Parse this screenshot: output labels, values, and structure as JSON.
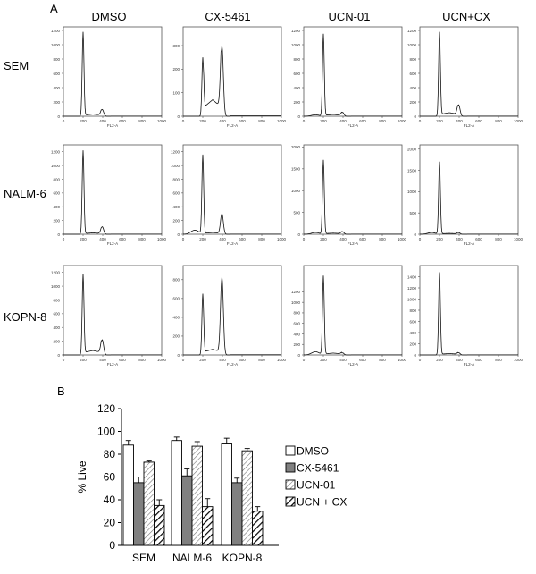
{
  "panel_a_label": "A",
  "panel_b_label": "B",
  "columns": [
    "DMSO",
    "CX-5461",
    "UCN-01",
    "UCN+CX"
  ],
  "rows": [
    "SEM",
    "NALM-6",
    "KOPN-8"
  ],
  "histogram_xlabel": "FL2-A",
  "histogram_xticks": [
    "0",
    "200",
    "400",
    "600",
    "800",
    "1000"
  ],
  "histograms": [
    [
      {
        "yticks": [
          "0",
          "200",
          "400",
          "600",
          "800",
          "1000",
          "1200"
        ],
        "ymax": 1250,
        "g1": 1180,
        "g2": 95,
        "s": 30,
        "sub": 0
      },
      {
        "yticks": [
          "0",
          "100",
          "200",
          "300"
        ],
        "ymax": 380,
        "g1": 250,
        "g2": 300,
        "s": 70,
        "sub": 0
      },
      {
        "yticks": [
          "0",
          "200",
          "400",
          "600",
          "800",
          "1000",
          "1200"
        ],
        "ymax": 1250,
        "g1": 1150,
        "g2": 55,
        "s": 25,
        "sub": 20
      },
      {
        "yticks": [
          "0",
          "200",
          "400",
          "600",
          "800",
          "1000",
          "1200"
        ],
        "ymax": 1250,
        "g1": 1180,
        "g2": 160,
        "s": 50,
        "sub": 0
      }
    ],
    [
      {
        "yticks": [
          "0",
          "200",
          "400",
          "600",
          "800",
          "1000",
          "1200"
        ],
        "ymax": 1300,
        "g1": 1220,
        "g2": 110,
        "s": 20,
        "sub": 0
      },
      {
        "yticks": [
          "0",
          "200",
          "400",
          "600",
          "800",
          "1000",
          "1200"
        ],
        "ymax": 1300,
        "g1": 1150,
        "g2": 300,
        "s": 25,
        "sub": 60
      },
      {
        "yticks": [
          "0",
          "500",
          "1000",
          "1500",
          "2000"
        ],
        "ymax": 2050,
        "g1": 1700,
        "g2": 60,
        "s": 25,
        "sub": 40
      },
      {
        "yticks": [
          "0",
          "500",
          "1000",
          "1500",
          "2000"
        ],
        "ymax": 2100,
        "g1": 1700,
        "g2": 40,
        "s": 20,
        "sub": 40
      }
    ],
    [
      {
        "yticks": [
          "0",
          "200",
          "400",
          "600",
          "800",
          "1000",
          "1200"
        ],
        "ymax": 1300,
        "g1": 1180,
        "g2": 220,
        "s": 65,
        "sub": 0
      },
      {
        "yticks": [
          "0",
          "200",
          "400",
          "600",
          "800"
        ],
        "ymax": 950,
        "g1": 650,
        "g2": 830,
        "s": 60,
        "sub": 0
      },
      {
        "yticks": [
          "0",
          "200",
          "400",
          "600",
          "800",
          "1000",
          "1200"
        ],
        "ymax": 1700,
        "g1": 1500,
        "g2": 40,
        "s": 35,
        "sub": 60
      },
      {
        "yticks": [
          "0",
          "200",
          "400",
          "600",
          "800",
          "1000",
          "1200",
          "1400"
        ],
        "ymax": 1600,
        "g1": 1480,
        "g2": 40,
        "s": 25,
        "sub": 0
      }
    ]
  ],
  "chart_data": {
    "type": "bar",
    "categories": [
      "SEM",
      "NALM-6",
      "KOPN-8"
    ],
    "series": [
      {
        "name": "DMSO",
        "values": [
          88,
          92,
          89
        ],
        "errors": [
          4,
          3,
          5
        ],
        "fill": "#ffffff"
      },
      {
        "name": "CX-5461",
        "values": [
          55,
          61,
          55
        ],
        "errors": [
          5,
          6,
          4
        ],
        "fill": "#808080"
      },
      {
        "name": "UCN-01",
        "values": [
          73,
          87,
          83
        ],
        "errors": [
          1,
          4,
          2
        ],
        "fill": "hatch-light"
      },
      {
        "name": "UCN + CX",
        "values": [
          35,
          34,
          30
        ],
        "errors": [
          5,
          7,
          4
        ],
        "fill": "hatch-bold"
      }
    ],
    "ylabel": "% Live",
    "ylim": [
      0,
      120
    ],
    "yticks": [
      "0",
      "20",
      "40",
      "60",
      "80",
      "100",
      "120"
    ],
    "legend": "right"
  }
}
